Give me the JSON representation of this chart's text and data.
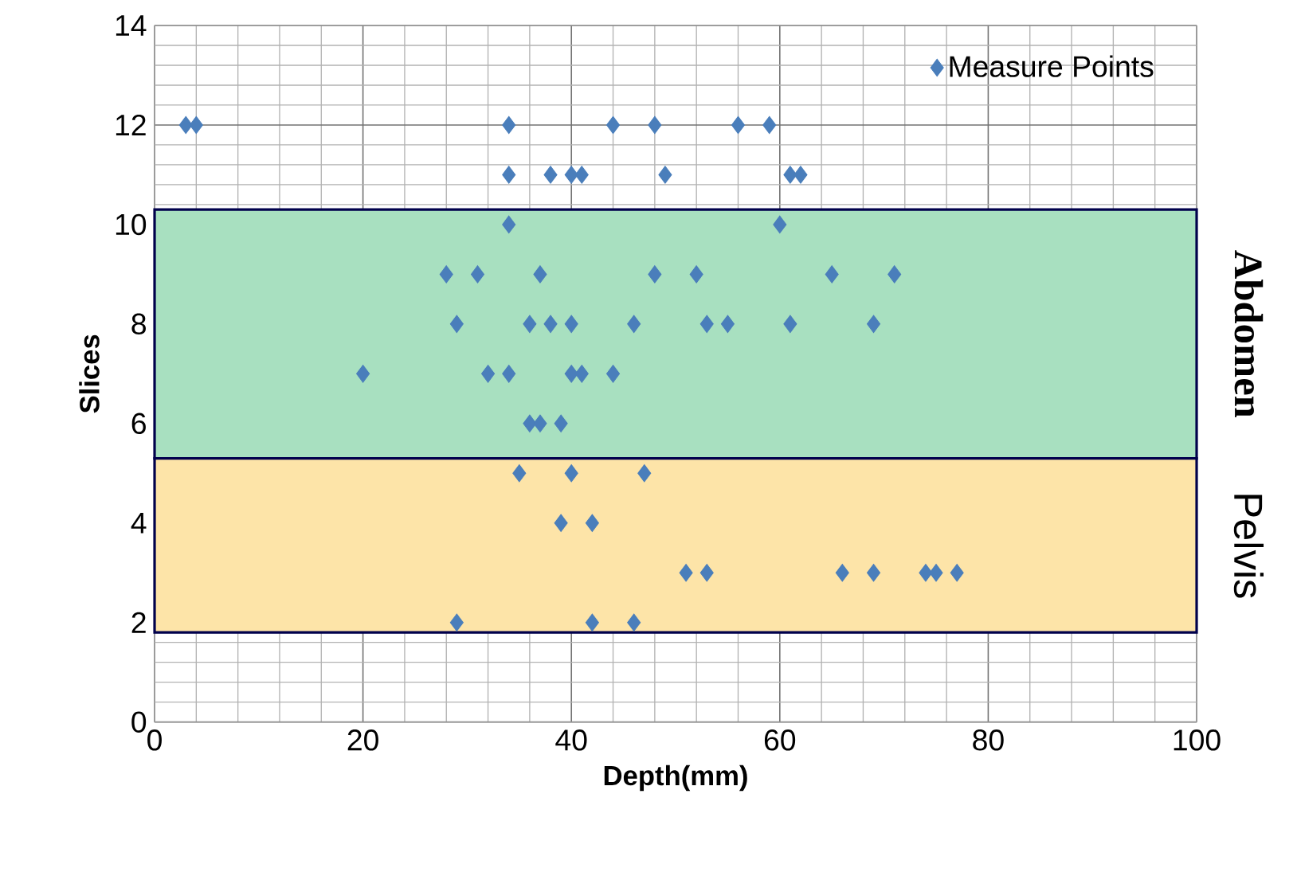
{
  "chart_data": {
    "type": "scatter",
    "xlabel": "Depth(mm)",
    "ylabel": "Slices",
    "x": [
      3,
      4,
      34,
      44,
      48,
      56,
      59,
      34,
      38,
      40,
      41,
      49,
      61,
      62,
      34,
      60,
      28,
      31,
      37,
      48,
      52,
      65,
      71,
      29,
      36,
      38,
      40,
      46,
      53,
      55,
      61,
      69,
      20,
      32,
      34,
      40,
      41,
      44,
      36,
      37,
      39,
      35,
      40,
      47,
      39,
      42,
      51,
      53,
      66,
      69,
      74,
      75,
      77,
      29,
      42,
      46
    ],
    "series": [
      {
        "name": "Measure Points",
        "color": "#4a7ebb",
        "values": [
          12,
          12,
          12,
          12,
          12,
          12,
          12,
          11,
          11,
          11,
          11,
          11,
          11,
          11,
          10,
          10,
          9,
          9,
          9,
          9,
          9,
          9,
          9,
          8,
          8,
          8,
          8,
          8,
          8,
          8,
          8,
          8,
          7,
          7,
          7,
          7,
          7,
          7,
          6,
          6,
          6,
          5,
          5,
          5,
          4,
          4,
          3,
          3,
          3,
          3,
          3,
          3,
          3,
          2,
          2,
          2
        ]
      }
    ],
    "xlim": [
      0,
      100
    ],
    "xticks": [
      0,
      20,
      40,
      60,
      80,
      100
    ],
    "ylim": [
      0,
      14
    ],
    "yticks": [
      0,
      2,
      4,
      6,
      8,
      10,
      12,
      14
    ],
    "bands": [
      {
        "axis": "y",
        "from": 5.3,
        "to": 10.3,
        "label": "Abdomen",
        "color": "#a8e0c0"
      },
      {
        "axis": "y",
        "from": 1.8,
        "to": 5.3,
        "label": "Pelvis",
        "color": "#fde4a8"
      }
    ],
    "grid": true,
    "legend": "top right",
    "marker": "diamond"
  }
}
